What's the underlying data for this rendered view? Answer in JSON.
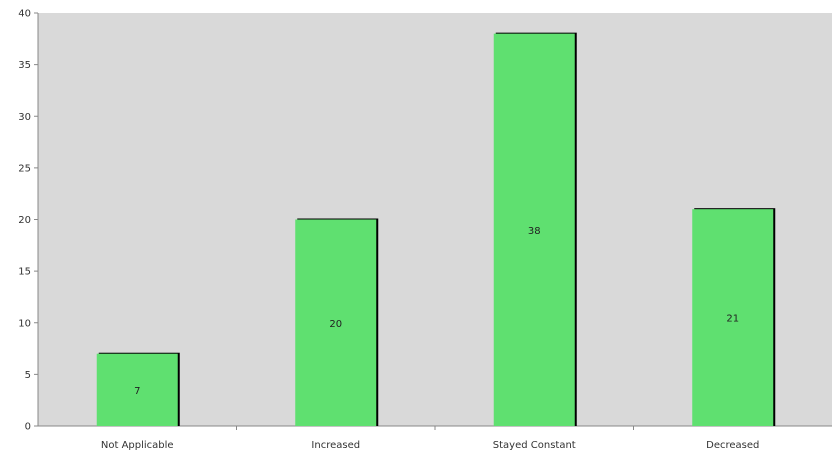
{
  "chart_data": {
    "type": "bar",
    "categories": [
      "Not Applicable",
      "Increased",
      "Stayed Constant",
      "Decreased"
    ],
    "values": [
      7,
      20,
      38,
      21
    ],
    "data_labels": [
      "7",
      "20",
      "38",
      "21"
    ],
    "ylim": [
      0,
      40
    ],
    "yticks": [
      0,
      5,
      10,
      15,
      20,
      25,
      30,
      35,
      40
    ],
    "grid": false,
    "colors": {
      "bar": "#5fe070",
      "bar_edge": "#000000",
      "plot_background": "#d9d9d9",
      "axis": "#888888"
    }
  }
}
